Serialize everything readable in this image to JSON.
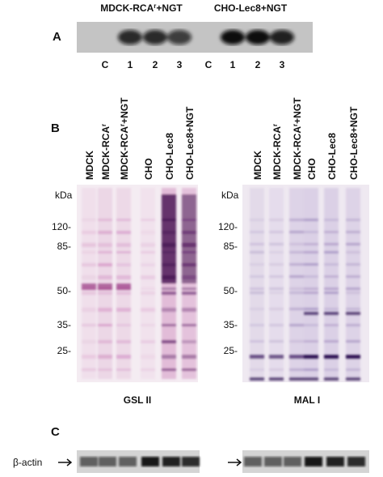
{
  "panel_a": {
    "label": "A",
    "groups": [
      {
        "text": "MDCK-RCA",
        "sup": "r",
        "after": "+NGT"
      },
      {
        "text": "CHO-Lec8+NGT"
      }
    ],
    "lanes": [
      "C",
      "1",
      "2",
      "3",
      "C",
      "1",
      "2",
      "3"
    ]
  },
  "panel_b": {
    "label": "B",
    "lanes": [
      {
        "text": "MDCK"
      },
      {
        "text": "MDCK-RCA",
        "sup": "r"
      },
      {
        "text": "MDCK-RCA",
        "sup": "r",
        "after": "+NGT"
      },
      {
        "text": "CHO"
      },
      {
        "text": "CHO-Lec8"
      },
      {
        "text": "CHO-Lec8+NGT"
      }
    ],
    "markers": [
      "kDa",
      "120-",
      "85-",
      "50-",
      "35-",
      "25-"
    ],
    "blots": [
      "GSL II",
      "MAL I"
    ]
  },
  "panel_c": {
    "label": "C",
    "band": "β-actin"
  }
}
